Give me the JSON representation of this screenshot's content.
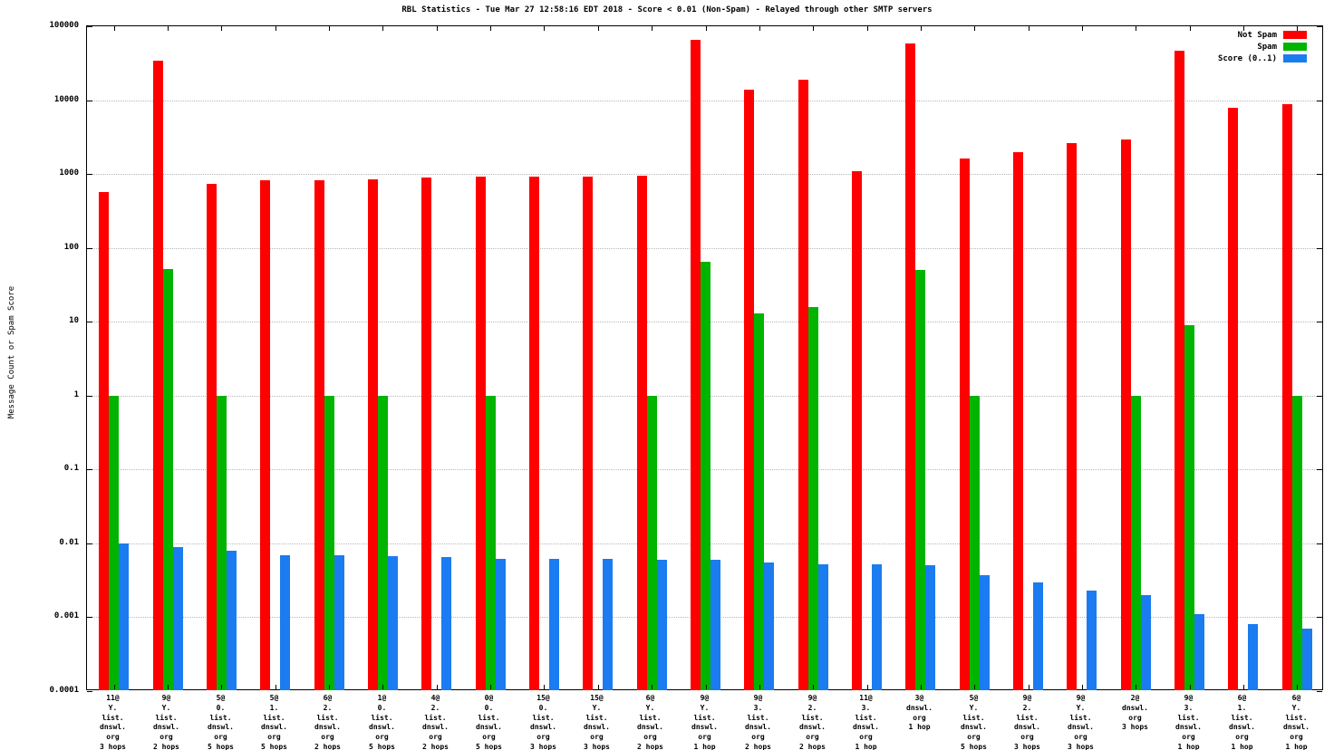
{
  "chart_data": {
    "type": "bar",
    "title": "RBL Statistics - Tue Mar 27 12:58:16 EDT 2018 - Score < 0.01 (Non-Spam) - Relayed through other SMTP servers",
    "ylabel": "Message Count or Spam Score",
    "xlabel": "",
    "y_scale": "log",
    "ylim": [
      0.0001,
      100000
    ],
    "y_ticks": [
      "100000",
      "10000",
      "1000",
      "100",
      "10",
      "1",
      "0.1",
      "0.01",
      "0.001",
      "0.0001"
    ],
    "grid": true,
    "legend_position": "top-right",
    "categories": [
      [
        "11@",
        "Y.",
        "list.",
        "dnswl.",
        "org",
        "3 hops"
      ],
      [
        "9@",
        "Y.",
        "list.",
        "dnswl.",
        "org",
        "2 hops"
      ],
      [
        "5@",
        "0.",
        "list.",
        "dnswl.",
        "org",
        "5 hops"
      ],
      [
        "5@",
        "1.",
        "list.",
        "dnswl.",
        "org",
        "5 hops"
      ],
      [
        "6@",
        "2.",
        "list.",
        "dnswl.",
        "org",
        "2 hops"
      ],
      [
        "1@",
        "0.",
        "list.",
        "dnswl.",
        "org",
        "5 hops"
      ],
      [
        "4@",
        "2.",
        "list.",
        "dnswl.",
        "org",
        "2 hops"
      ],
      [
        "0@",
        "0.",
        "list.",
        "dnswl.",
        "org",
        "5 hops"
      ],
      [
        "15@",
        "0.",
        "list.",
        "dnswl.",
        "org",
        "3 hops"
      ],
      [
        "15@",
        "Y.",
        "list.",
        "dnswl.",
        "org",
        "3 hops"
      ],
      [
        "6@",
        "Y.",
        "list.",
        "dnswl.",
        "org",
        "2 hops"
      ],
      [
        "9@",
        "Y.",
        "list.",
        "dnswl.",
        "org",
        "1 hop"
      ],
      [
        "9@",
        "3.",
        "list.",
        "dnswl.",
        "org",
        "2 hops"
      ],
      [
        "9@",
        "2.",
        "list.",
        "dnswl.",
        "org",
        "2 hops"
      ],
      [
        "11@",
        "3.",
        "list.",
        "dnswl.",
        "org",
        "1 hop"
      ],
      [
        "3@",
        "dnswl.",
        "org",
        "1 hop"
      ],
      [
        "5@",
        "Y.",
        "list.",
        "dnswl.",
        "org",
        "5 hops"
      ],
      [
        "9@",
        "2.",
        "list.",
        "dnswl.",
        "org",
        "3 hops"
      ],
      [
        "9@",
        "Y.",
        "list.",
        "dnswl.",
        "org",
        "3 hops"
      ],
      [
        "2@",
        "dnswl.",
        "org",
        "3 hops"
      ],
      [
        "9@",
        "3.",
        "list.",
        "dnswl.",
        "org",
        "1 hop"
      ],
      [
        "6@",
        "1.",
        "list.",
        "dnswl.",
        "org",
        "1 hop"
      ],
      [
        "6@",
        "Y.",
        "list.",
        "dnswl.",
        "org",
        "1 hop"
      ]
    ],
    "series": [
      {
        "name": "Not Spam",
        "key": "not-spam",
        "color": "#ff0000",
        "values": [
          570,
          34000,
          730,
          820,
          830,
          850,
          900,
          910,
          930,
          930,
          940,
          65000,
          14000,
          19000,
          1100,
          58000,
          1600,
          2000,
          2600,
          2900,
          47000,
          7800,
          8700
        ]
      },
      {
        "name": "Spam",
        "key": "spam",
        "color": "#00b400",
        "values": [
          1,
          52,
          1,
          null,
          1,
          1,
          null,
          1,
          null,
          null,
          1,
          65,
          13,
          16,
          null,
          50,
          1,
          null,
          null,
          1,
          9,
          null,
          1
        ]
      },
      {
        "name": "Score (0..1)",
        "key": "score",
        "color": "#1a7cf0",
        "values": [
          0.01,
          0.009,
          0.008,
          0.007,
          0.007,
          0.0068,
          0.0065,
          0.0062,
          0.0062,
          0.0062,
          0.006,
          0.006,
          0.0055,
          0.0052,
          0.0052,
          0.005,
          0.0037,
          0.003,
          0.0023,
          0.002,
          0.0011,
          0.0008,
          0.0007
        ]
      }
    ]
  }
}
